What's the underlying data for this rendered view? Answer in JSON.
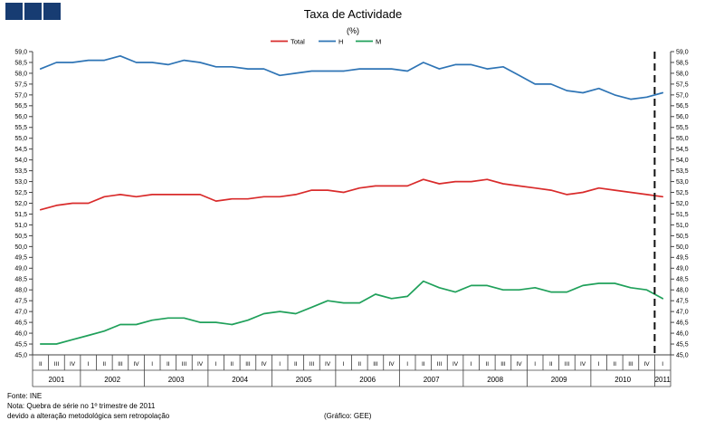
{
  "logo": {
    "squares": 3,
    "color": "#173c72"
  },
  "chart_data": {
    "type": "line",
    "title": "Taxa de Actividade",
    "subtitle": "(%)",
    "ylim": [
      45.0,
      59.0
    ],
    "ytick_step": 0.5,
    "grid": false,
    "legend_position": "top",
    "break_index": 39,
    "x_labels": [
      "II",
      "III",
      "IV",
      "I",
      "II",
      "III",
      "IV",
      "I",
      "II",
      "III",
      "IV",
      "I",
      "II",
      "III",
      "IV",
      "I",
      "II",
      "III",
      "IV",
      "I",
      "II",
      "III",
      "IV",
      "I",
      "II",
      "III",
      "IV",
      "I",
      "II",
      "III",
      "IV",
      "I",
      "II",
      "III",
      "IV",
      "I",
      "II",
      "III",
      "IV",
      "I"
    ],
    "years": [
      {
        "label": "2001",
        "quarters": 3
      },
      {
        "label": "2002",
        "quarters": 4
      },
      {
        "label": "2003",
        "quarters": 4
      },
      {
        "label": "2004",
        "quarters": 4
      },
      {
        "label": "2005",
        "quarters": 4
      },
      {
        "label": "2006",
        "quarters": 4
      },
      {
        "label": "2007",
        "quarters": 4
      },
      {
        "label": "2008",
        "quarters": 4
      },
      {
        "label": "2009",
        "quarters": 4
      },
      {
        "label": "2010",
        "quarters": 4
      },
      {
        "label": "2011",
        "quarters": 1
      }
    ],
    "series": [
      {
        "name": "Total",
        "color": "#d92b2b",
        "values": [
          51.7,
          51.9,
          52.0,
          52.0,
          52.3,
          52.4,
          52.3,
          52.4,
          52.4,
          52.4,
          52.4,
          52.1,
          52.2,
          52.2,
          52.3,
          52.3,
          52.4,
          52.6,
          52.6,
          52.5,
          52.7,
          52.8,
          52.8,
          52.8,
          53.1,
          52.9,
          53.0,
          53.0,
          53.1,
          52.9,
          52.8,
          52.7,
          52.6,
          52.4,
          52.5,
          52.7,
          52.6,
          52.5,
          52.4,
          52.3
        ]
      },
      {
        "name": "H",
        "color": "#2e74b5",
        "values": [
          58.2,
          58.5,
          58.5,
          58.6,
          58.6,
          58.8,
          58.5,
          58.5,
          58.4,
          58.6,
          58.5,
          58.3,
          58.3,
          58.2,
          58.2,
          57.9,
          58.0,
          58.1,
          58.1,
          58.1,
          58.2,
          58.2,
          58.2,
          58.1,
          58.5,
          58.2,
          58.4,
          58.4,
          58.2,
          58.3,
          57.9,
          57.5,
          57.5,
          57.2,
          57.1,
          57.3,
          57.0,
          56.8,
          56.9,
          57.1
        ]
      },
      {
        "name": "M",
        "color": "#1fa05a",
        "values": [
          45.5,
          45.5,
          45.7,
          45.9,
          46.1,
          46.4,
          46.4,
          46.6,
          46.7,
          46.7,
          46.5,
          46.5,
          46.4,
          46.6,
          46.9,
          47.0,
          46.9,
          47.2,
          47.5,
          47.4,
          47.4,
          47.8,
          47.6,
          47.7,
          48.4,
          48.1,
          47.9,
          48.2,
          48.2,
          48.0,
          48.0,
          48.1,
          47.9,
          47.9,
          48.2,
          48.3,
          48.3,
          48.1,
          48.0,
          47.6
        ]
      }
    ],
    "legend": [
      "Total",
      "H",
      "M"
    ]
  },
  "footer": {
    "source": "Fonte: INE",
    "note1": "Nota: Quebra de série no 1º trimestre de 2011",
    "note2": "devido a alteração metodológica sem retropolação",
    "credit": "(Gráfico: GEE)"
  }
}
